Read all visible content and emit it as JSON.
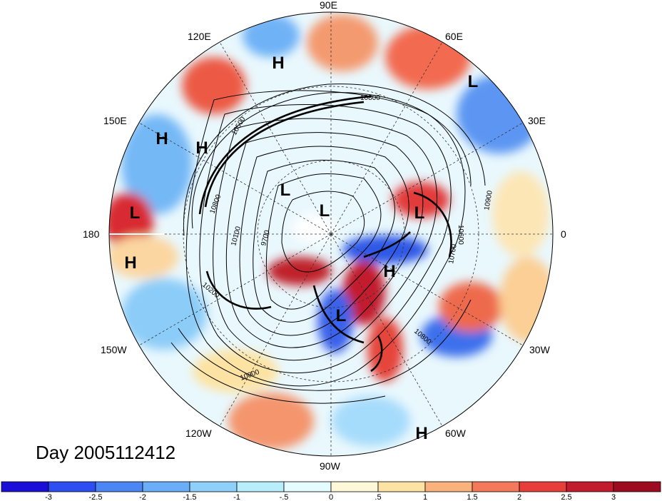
{
  "title": "Day 2005112412",
  "longitude_labels": [
    {
      "text": "90E",
      "lon": 90
    },
    {
      "text": "60E",
      "lon": 60
    },
    {
      "text": "30E",
      "lon": 30
    },
    {
      "text": "0",
      "lon": 0
    },
    {
      "text": "30W",
      "lon": -30
    },
    {
      "text": "60W",
      "lon": -60
    },
    {
      "text": "90W",
      "lon": -90
    },
    {
      "text": "120W",
      "lon": -120
    },
    {
      "text": "150W",
      "lon": -150
    },
    {
      "text": "180",
      "lon": 180
    },
    {
      "text": "150E",
      "lon": 150
    },
    {
      "text": "120E",
      "lon": 120
    }
  ],
  "pressure_centers": [
    {
      "type": "H",
      "name": "high-center-north"
    },
    {
      "type": "L",
      "name": "low-center-northeast"
    },
    {
      "type": "H",
      "name": "high-center-west-1"
    },
    {
      "type": "H",
      "name": "high-center-west-2"
    },
    {
      "type": "L",
      "name": "low-center-pole-1"
    },
    {
      "type": "L",
      "name": "low-center-pole-2"
    },
    {
      "type": "L",
      "name": "low-center-europe"
    },
    {
      "type": "L",
      "name": "low-center-dateline"
    },
    {
      "type": "H",
      "name": "high-center-dateline"
    },
    {
      "type": "H",
      "name": "high-center-atlantic"
    },
    {
      "type": "L",
      "name": "low-center-america"
    },
    {
      "type": "H",
      "name": "high-center-south"
    }
  ],
  "contour_labels": [
    "10800",
    "10900",
    "10800",
    "10700",
    "10600",
    "10100",
    "9700",
    "10500",
    "10200",
    "10800",
    "10900"
  ],
  "colorbar": {
    "ticks": [
      "-3",
      "-2.5",
      "-2",
      "-1.5",
      "-1",
      "-.5",
      "0",
      ".5",
      "1",
      "1.5",
      "2",
      "2.5",
      "3"
    ],
    "colors": [
      "#1a0fd6",
      "#2d4ef0",
      "#4c86f5",
      "#69aef7",
      "#8fd0fb",
      "#b8edfc",
      "#e4fbff",
      "#fff8d8",
      "#fde3a3",
      "#f9b27b",
      "#f3795a",
      "#e63e3a",
      "#c21b2d",
      "#9c0b1f"
    ]
  }
}
